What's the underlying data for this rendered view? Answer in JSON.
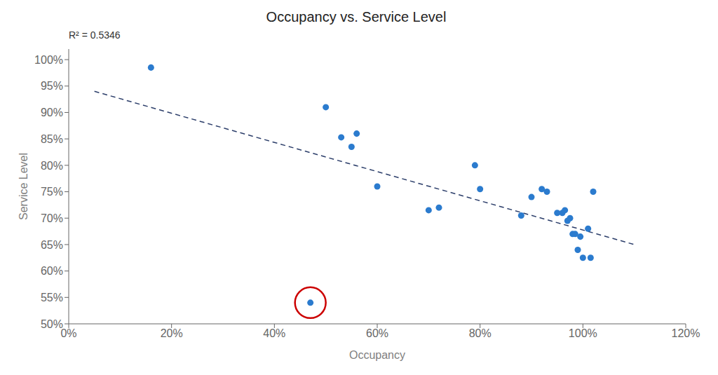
{
  "chart_data": {
    "type": "scatter",
    "title": "Occupancy vs. Service Level",
    "x_label": "Occupancy",
    "y_label": "Service Level",
    "annotation": "R² = 0.5346",
    "x": [
      0.16,
      0.47,
      0.5,
      0.53,
      0.55,
      0.56,
      0.6,
      0.7,
      0.72,
      0.79,
      0.8,
      0.88,
      0.9,
      0.92,
      0.93,
      0.95,
      0.96,
      0.965,
      0.97,
      0.975,
      0.98,
      0.985,
      0.99,
      0.995,
      1.0,
      1.01,
      1.015,
      1.02
    ],
    "values": [
      0.985,
      0.54,
      0.91,
      0.853,
      0.835,
      0.86,
      0.76,
      0.715,
      0.72,
      0.8,
      0.755,
      0.705,
      0.74,
      0.755,
      0.75,
      0.71,
      0.71,
      0.715,
      0.695,
      0.7,
      0.67,
      0.67,
      0.64,
      0.665,
      0.625,
      0.68,
      0.625,
      0.75
    ],
    "color": "#2b7bce",
    "trendline": {
      "x": [
        0.05,
        1.1
      ],
      "values": [
        0.94,
        0.65
      ],
      "color": "#2c3e6a",
      "line_style": "dashed"
    },
    "highlight": {
      "x": 0.47,
      "y": 0.54,
      "color": "#cc0000"
    },
    "xlim": [
      0.0,
      1.2
    ],
    "ylim": [
      0.5,
      1.02
    ],
    "xticks": [
      {
        "value": 0.0,
        "label": "0%"
      },
      {
        "value": 0.2,
        "label": "20%"
      },
      {
        "value": 0.4,
        "label": "40%"
      },
      {
        "value": 0.6,
        "label": "60%"
      },
      {
        "value": 0.8,
        "label": "80%"
      },
      {
        "value": 1.0,
        "label": "100%"
      },
      {
        "value": 1.2,
        "label": "120%"
      }
    ],
    "yticks": [
      {
        "value": 0.5,
        "label": "50%"
      },
      {
        "value": 0.55,
        "label": "55%"
      },
      {
        "value": 0.6,
        "label": "60%"
      },
      {
        "value": 0.65,
        "label": "65%"
      },
      {
        "value": 0.7,
        "label": "70%"
      },
      {
        "value": 0.75,
        "label": "75%"
      },
      {
        "value": 0.8,
        "label": "80%"
      },
      {
        "value": 0.85,
        "label": "85%"
      },
      {
        "value": 0.9,
        "label": "90%"
      },
      {
        "value": 0.95,
        "label": "95%"
      },
      {
        "value": 1.0,
        "label": "100%"
      }
    ],
    "grid": false
  }
}
